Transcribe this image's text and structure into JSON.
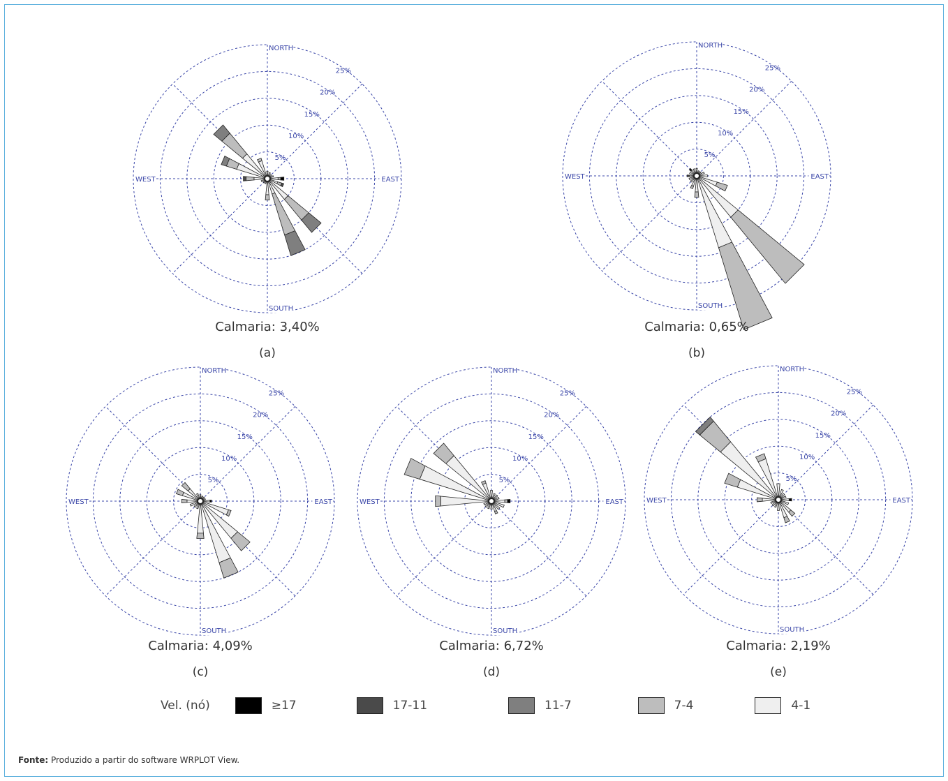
{
  "chart_data": [
    {
      "type": "windrose",
      "panel": "(a)",
      "calm_label": "Calmaria: 3,40%",
      "directions": [
        "NORTH",
        "EAST",
        "SOUTH",
        "WEST"
      ],
      "rings": [
        "5%",
        "10%",
        "15%",
        "20%",
        "25%"
      ],
      "petals": [
        {
          "dir": 157.5,
          "bands": [
            {
              "bin": "4-1",
              "pct": 3
            },
            {
              "bin": "7-4",
              "pct": 8
            },
            {
              "bin": "11-7",
              "pct": 4
            }
          ]
        },
        {
          "dir": 135,
          "bands": [
            {
              "bin": "4-1",
              "pct": 5
            },
            {
              "bin": "7-4",
              "pct": 5
            },
            {
              "bin": "11-7",
              "pct": 3
            }
          ]
        },
        {
          "dir": 315,
          "bands": [
            {
              "bin": "4-1",
              "pct": 6
            },
            {
              "bin": "7-4",
              "pct": 5
            },
            {
              "bin": "11-7",
              "pct": 2
            }
          ]
        },
        {
          "dir": 292.5,
          "bands": [
            {
              "bin": "4-1",
              "pct": 6
            },
            {
              "bin": "7-4",
              "pct": 2
            },
            {
              "bin": "11-7",
              "pct": 1
            }
          ]
        },
        {
          "dir": 270,
          "bands": [
            {
              "bin": "4-1",
              "pct": 2.5
            },
            {
              "bin": "7-4",
              "pct": 1.5
            },
            {
              "bin": "17-11",
              "pct": 0.5
            }
          ]
        },
        {
          "dir": 337.5,
          "bands": [
            {
              "bin": "4-1",
              "pct": 3.5
            },
            {
              "bin": "7-4",
              "pct": 0.5
            }
          ]
        },
        {
          "dir": 180,
          "bands": [
            {
              "bin": "4-1",
              "pct": 3
            },
            {
              "bin": "7-4",
              "pct": 1
            }
          ]
        },
        {
          "dir": 112.5,
          "bands": [
            {
              "bin": "4-1",
              "pct": 2
            },
            {
              "bin": "7-4",
              "pct": 0.8
            },
            {
              "bin": "17-11",
              "pct": 0.4
            }
          ]
        },
        {
          "dir": 90,
          "bands": [
            {
              "bin": "4-1",
              "pct": 2
            },
            {
              "bin": "7-4",
              "pct": 0.5
            },
            {
              "bin": "≥17",
              "pct": 0.6
            }
          ]
        },
        {
          "dir": 22.5,
          "bands": [
            {
              "bin": "4-1",
              "pct": 1.2
            }
          ]
        },
        {
          "dir": 45,
          "bands": [
            {
              "bin": "4-1",
              "pct": 1
            }
          ]
        },
        {
          "dir": 67.5,
          "bands": [
            {
              "bin": "4-1",
              "pct": 1.2
            }
          ]
        },
        {
          "dir": 0,
          "bands": [
            {
              "bin": "4-1",
              "pct": 1.4
            }
          ]
        },
        {
          "dir": 202.5,
          "bands": [
            {
              "bin": "4-1",
              "pct": 1
            }
          ]
        },
        {
          "dir": 225,
          "bands": [
            {
              "bin": "4-1",
              "pct": 1
            }
          ]
        },
        {
          "dir": 247.5,
          "bands": [
            {
              "bin": "4-1",
              "pct": 1.2
            }
          ]
        }
      ]
    },
    {
      "type": "windrose",
      "panel": "(b)",
      "calm_label": "Calmaria: 0,65%",
      "directions": [
        "NORTH",
        "EAST",
        "SOUTH",
        "WEST"
      ],
      "rings": [
        "5%",
        "10%",
        "15%",
        "20%",
        "25%"
      ],
      "petals": [
        {
          "dir": 157.5,
          "bands": [
            {
              "bin": "4-1",
              "pct": 14
            },
            {
              "bin": "7-4",
              "pct": 16
            }
          ]
        },
        {
          "dir": 135,
          "bands": [
            {
              "bin": "4-1",
              "pct": 10
            },
            {
              "bin": "7-4",
              "pct": 16
            }
          ]
        },
        {
          "dir": 112.5,
          "bands": [
            {
              "bin": "4-1",
              "pct": 4
            },
            {
              "bin": "7-4",
              "pct": 2
            }
          ]
        },
        {
          "dir": 180,
          "bands": [
            {
              "bin": "4-1",
              "pct": 3
            },
            {
              "bin": "7-4",
              "pct": 1
            }
          ]
        },
        {
          "dir": 202.5,
          "bands": [
            {
              "bin": "4-1",
              "pct": 2
            },
            {
              "bin": "7-4",
              "pct": 0.5
            }
          ]
        },
        {
          "dir": 225,
          "bands": [
            {
              "bin": "4-1",
              "pct": 1.5
            }
          ]
        },
        {
          "dir": 247.5,
          "bands": [
            {
              "bin": "4-1",
              "pct": 1.5
            }
          ]
        },
        {
          "dir": 270,
          "bands": [
            {
              "bin": "4-1",
              "pct": 1.4
            },
            {
              "bin": "17-11",
              "pct": 0.4
            }
          ]
        },
        {
          "dir": 292.5,
          "bands": [
            {
              "bin": "4-1",
              "pct": 1.4
            }
          ]
        },
        {
          "dir": 315,
          "bands": [
            {
              "bin": "4-1",
              "pct": 1.4
            },
            {
              "bin": "≥17",
              "pct": 0.4
            }
          ]
        },
        {
          "dir": 337.5,
          "bands": [
            {
              "bin": "4-1",
              "pct": 1.4
            }
          ]
        },
        {
          "dir": 0,
          "bands": [
            {
              "bin": "4-1",
              "pct": 1.4
            }
          ]
        },
        {
          "dir": 22.5,
          "bands": [
            {
              "bin": "4-1",
              "pct": 1
            }
          ]
        },
        {
          "dir": 45,
          "bands": [
            {
              "bin": "4-1",
              "pct": 1
            }
          ]
        },
        {
          "dir": 67.5,
          "bands": [
            {
              "bin": "4-1",
              "pct": 1.5
            }
          ]
        },
        {
          "dir": 90,
          "bands": [
            {
              "bin": "4-1",
              "pct": 2
            }
          ]
        }
      ]
    },
    {
      "type": "windrose",
      "panel": "(c)",
      "calm_label": "Calmaria: 4,09%",
      "directions": [
        "NORTH",
        "EAST",
        "SOUTH",
        "WEST"
      ],
      "rings": [
        "5%",
        "10%",
        "15%",
        "20%",
        "25%"
      ],
      "petals": [
        {
          "dir": 157.5,
          "bands": [
            {
              "bin": "4-1",
              "pct": 12
            },
            {
              "bin": "7-4",
              "pct": 3
            }
          ]
        },
        {
          "dir": 135,
          "bands": [
            {
              "bin": "4-1",
              "pct": 9
            },
            {
              "bin": "7-4",
              "pct": 3
            }
          ]
        },
        {
          "dir": 112.5,
          "bands": [
            {
              "bin": "4-1",
              "pct": 5.5
            },
            {
              "bin": "7-4",
              "pct": 0.5
            }
          ]
        },
        {
          "dir": 180,
          "bands": [
            {
              "bin": "4-1",
              "pct": 6
            },
            {
              "bin": "7-4",
              "pct": 1
            }
          ]
        },
        {
          "dir": 202.5,
          "bands": [
            {
              "bin": "4-1",
              "pct": 1.5
            }
          ]
        },
        {
          "dir": 225,
          "bands": [
            {
              "bin": "4-1",
              "pct": 1.5
            }
          ]
        },
        {
          "dir": 247.5,
          "bands": [
            {
              "bin": "4-1",
              "pct": 2
            }
          ]
        },
        {
          "dir": 270,
          "bands": [
            {
              "bin": "4-1",
              "pct": 2.5
            },
            {
              "bin": "7-4",
              "pct": 1
            }
          ]
        },
        {
          "dir": 292.5,
          "bands": [
            {
              "bin": "4-1",
              "pct": 3.5
            },
            {
              "bin": "7-4",
              "pct": 1.2
            }
          ]
        },
        {
          "dir": 315,
          "bands": [
            {
              "bin": "4-1",
              "pct": 3
            },
            {
              "bin": "7-4",
              "pct": 1.5
            }
          ]
        },
        {
          "dir": 337.5,
          "bands": [
            {
              "bin": "4-1",
              "pct": 1.5
            }
          ]
        },
        {
          "dir": 0,
          "bands": [
            {
              "bin": "4-1",
              "pct": 1.2
            }
          ]
        },
        {
          "dir": 22.5,
          "bands": [
            {
              "bin": "4-1",
              "pct": 1
            }
          ]
        },
        {
          "dir": 45,
          "bands": [
            {
              "bin": "4-1",
              "pct": 1
            }
          ]
        },
        {
          "dir": 67.5,
          "bands": [
            {
              "bin": "4-1",
              "pct": 1
            }
          ]
        },
        {
          "dir": 90,
          "bands": [
            {
              "bin": "4-1",
              "pct": 1.8
            },
            {
              "bin": "≥17",
              "pct": 0.3
            }
          ]
        }
      ]
    },
    {
      "type": "windrose",
      "panel": "(d)",
      "calm_label": "Calmaria: 6,72%",
      "directions": [
        "NORTH",
        "EAST",
        "SOUTH",
        "WEST"
      ],
      "rings": [
        "5%",
        "10%",
        "15%",
        "20%",
        "25%"
      ],
      "petals": [
        {
          "dir": 292.5,
          "bands": [
            {
              "bin": "4-1",
              "pct": 14
            },
            {
              "bin": "7-4",
              "pct": 3
            }
          ]
        },
        {
          "dir": 315,
          "bands": [
            {
              "bin": "4-1",
              "pct": 11
            },
            {
              "bin": "7-4",
              "pct": 3
            }
          ]
        },
        {
          "dir": 270,
          "bands": [
            {
              "bin": "4-1",
              "pct": 9.5
            },
            {
              "bin": "7-4",
              "pct": 1
            }
          ]
        },
        {
          "dir": 337.5,
          "bands": [
            {
              "bin": "4-1",
              "pct": 3.5
            },
            {
              "bin": "7-4",
              "pct": 0.5
            }
          ]
        },
        {
          "dir": 0,
          "bands": [
            {
              "bin": "4-1",
              "pct": 2
            }
          ]
        },
        {
          "dir": 22.5,
          "bands": [
            {
              "bin": "4-1",
              "pct": 1.5
            }
          ]
        },
        {
          "dir": 45,
          "bands": [
            {
              "bin": "4-1",
              "pct": 1.5
            }
          ]
        },
        {
          "dir": 67.5,
          "bands": [
            {
              "bin": "4-1",
              "pct": 1.5
            }
          ]
        },
        {
          "dir": 90,
          "bands": [
            {
              "bin": "4-1",
              "pct": 2.5
            },
            {
              "bin": "7-4",
              "pct": 0.5
            },
            {
              "bin": "≥17",
              "pct": 0.5
            }
          ]
        },
        {
          "dir": 112.5,
          "bands": [
            {
              "bin": "4-1",
              "pct": 2.5
            }
          ]
        },
        {
          "dir": 135,
          "bands": [
            {
              "bin": "4-1",
              "pct": 2
            }
          ]
        },
        {
          "dir": 157.5,
          "bands": [
            {
              "bin": "4-1",
              "pct": 2
            },
            {
              "bin": "7-4",
              "pct": 0.5
            }
          ]
        },
        {
          "dir": 180,
          "bands": [
            {
              "bin": "4-1",
              "pct": 1.5
            }
          ]
        },
        {
          "dir": 202.5,
          "bands": [
            {
              "bin": "4-1",
              "pct": 1.5
            }
          ]
        },
        {
          "dir": 225,
          "bands": [
            {
              "bin": "4-1",
              "pct": 1.5
            }
          ]
        },
        {
          "dir": 247.5,
          "bands": [
            {
              "bin": "4-1",
              "pct": 1.5
            }
          ]
        }
      ]
    },
    {
      "type": "windrose",
      "panel": "(e)",
      "calm_label": "Calmaria: 2,19%",
      "directions": [
        "NORTH",
        "EAST",
        "SOUTH",
        "WEST"
      ],
      "rings": [
        "5%",
        "10%",
        "15%",
        "20%",
        "25%"
      ],
      "petals": [
        {
          "dir": 315,
          "bands": [
            {
              "bin": "4-1",
              "pct": 14
            },
            {
              "bin": "7-4",
              "pct": 5
            },
            {
              "bin": "11-7",
              "pct": 1
            }
          ]
        },
        {
          "dir": 292.5,
          "bands": [
            {
              "bin": "4-1",
              "pct": 8
            },
            {
              "bin": "7-4",
              "pct": 2.5
            }
          ]
        },
        {
          "dir": 337.5,
          "bands": [
            {
              "bin": "4-1",
              "pct": 8
            },
            {
              "bin": "7-4",
              "pct": 1
            }
          ]
        },
        {
          "dir": 270,
          "bands": [
            {
              "bin": "4-1",
              "pct": 3
            },
            {
              "bin": "7-4",
              "pct": 1
            }
          ]
        },
        {
          "dir": 0,
          "bands": [
            {
              "bin": "4-1",
              "pct": 3
            }
          ]
        },
        {
          "dir": 22.5,
          "bands": [
            {
              "bin": "4-1",
              "pct": 2
            }
          ]
        },
        {
          "dir": 45,
          "bands": [
            {
              "bin": "4-1",
              "pct": 1.5
            }
          ]
        },
        {
          "dir": 67.5,
          "bands": [
            {
              "bin": "4-1",
              "pct": 1.5
            }
          ]
        },
        {
          "dir": 90,
          "bands": [
            {
              "bin": "4-1",
              "pct": 2
            },
            {
              "bin": "≥17",
              "pct": 0.5
            }
          ]
        },
        {
          "dir": 112.5,
          "bands": [
            {
              "bin": "4-1",
              "pct": 2
            }
          ]
        },
        {
          "dir": 135,
          "bands": [
            {
              "bin": "4-1",
              "pct": 3
            },
            {
              "bin": "7-4",
              "pct": 1
            }
          ]
        },
        {
          "dir": 157.5,
          "bands": [
            {
              "bin": "4-1",
              "pct": 3.5
            },
            {
              "bin": "7-4",
              "pct": 1
            }
          ]
        },
        {
          "dir": 180,
          "bands": [
            {
              "bin": "4-1",
              "pct": 2
            }
          ]
        },
        {
          "dir": 202.5,
          "bands": [
            {
              "bin": "4-1",
              "pct": 1.5
            }
          ]
        },
        {
          "dir": 225,
          "bands": [
            {
              "bin": "4-1",
              "pct": 1.5
            }
          ]
        },
        {
          "dir": 247.5,
          "bands": [
            {
              "bin": "4-1",
              "pct": 1.5
            }
          ]
        }
      ]
    }
  ],
  "legend": {
    "title": "Vel. (nó)",
    "items": [
      {
        "label": "≥17",
        "color": "#000000"
      },
      {
        "label": "17-11",
        "color": "#4a4a4a"
      },
      {
        "label": "11-7",
        "color": "#7f7f7f"
      },
      {
        "label": "7-4",
        "color": "#bdbdbd"
      },
      {
        "label": "4-1",
        "color": "#efefef"
      }
    ]
  },
  "footer": {
    "bold": "Fonte:",
    "text": " Produzido a partir do software WRPLOT View."
  },
  "style": {
    "grid_color": "#3a46a8",
    "label_color": "#3a46a8",
    "outline_color": "#222222"
  }
}
